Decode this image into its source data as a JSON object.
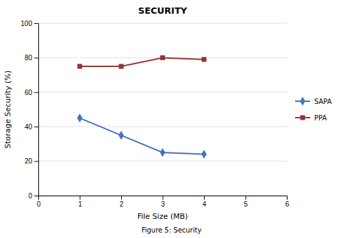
{
  "chart_data": {
    "type": "line",
    "title": "SECURITY",
    "caption": "Figure 5: Security",
    "x_label": "File Size (MB)",
    "y_label": "Storage Security (%)",
    "x": [
      1,
      2,
      3,
      4
    ],
    "series": [
      {
        "name": "SAPA",
        "color": "#4472C4",
        "marker": "diamond",
        "values": [
          45,
          35,
          25,
          24
        ]
      },
      {
        "name": "PPA",
        "color": "#943634",
        "marker": "square",
        "values": [
          75,
          75,
          80,
          79
        ]
      }
    ],
    "xlim": [
      0,
      6
    ],
    "xticks": [
      0,
      1,
      2,
      3,
      4,
      5,
      6
    ],
    "ylim": [
      0,
      100
    ],
    "yticks": [
      0,
      20,
      40,
      60,
      80,
      100
    ],
    "grid": true,
    "legend": "right"
  }
}
